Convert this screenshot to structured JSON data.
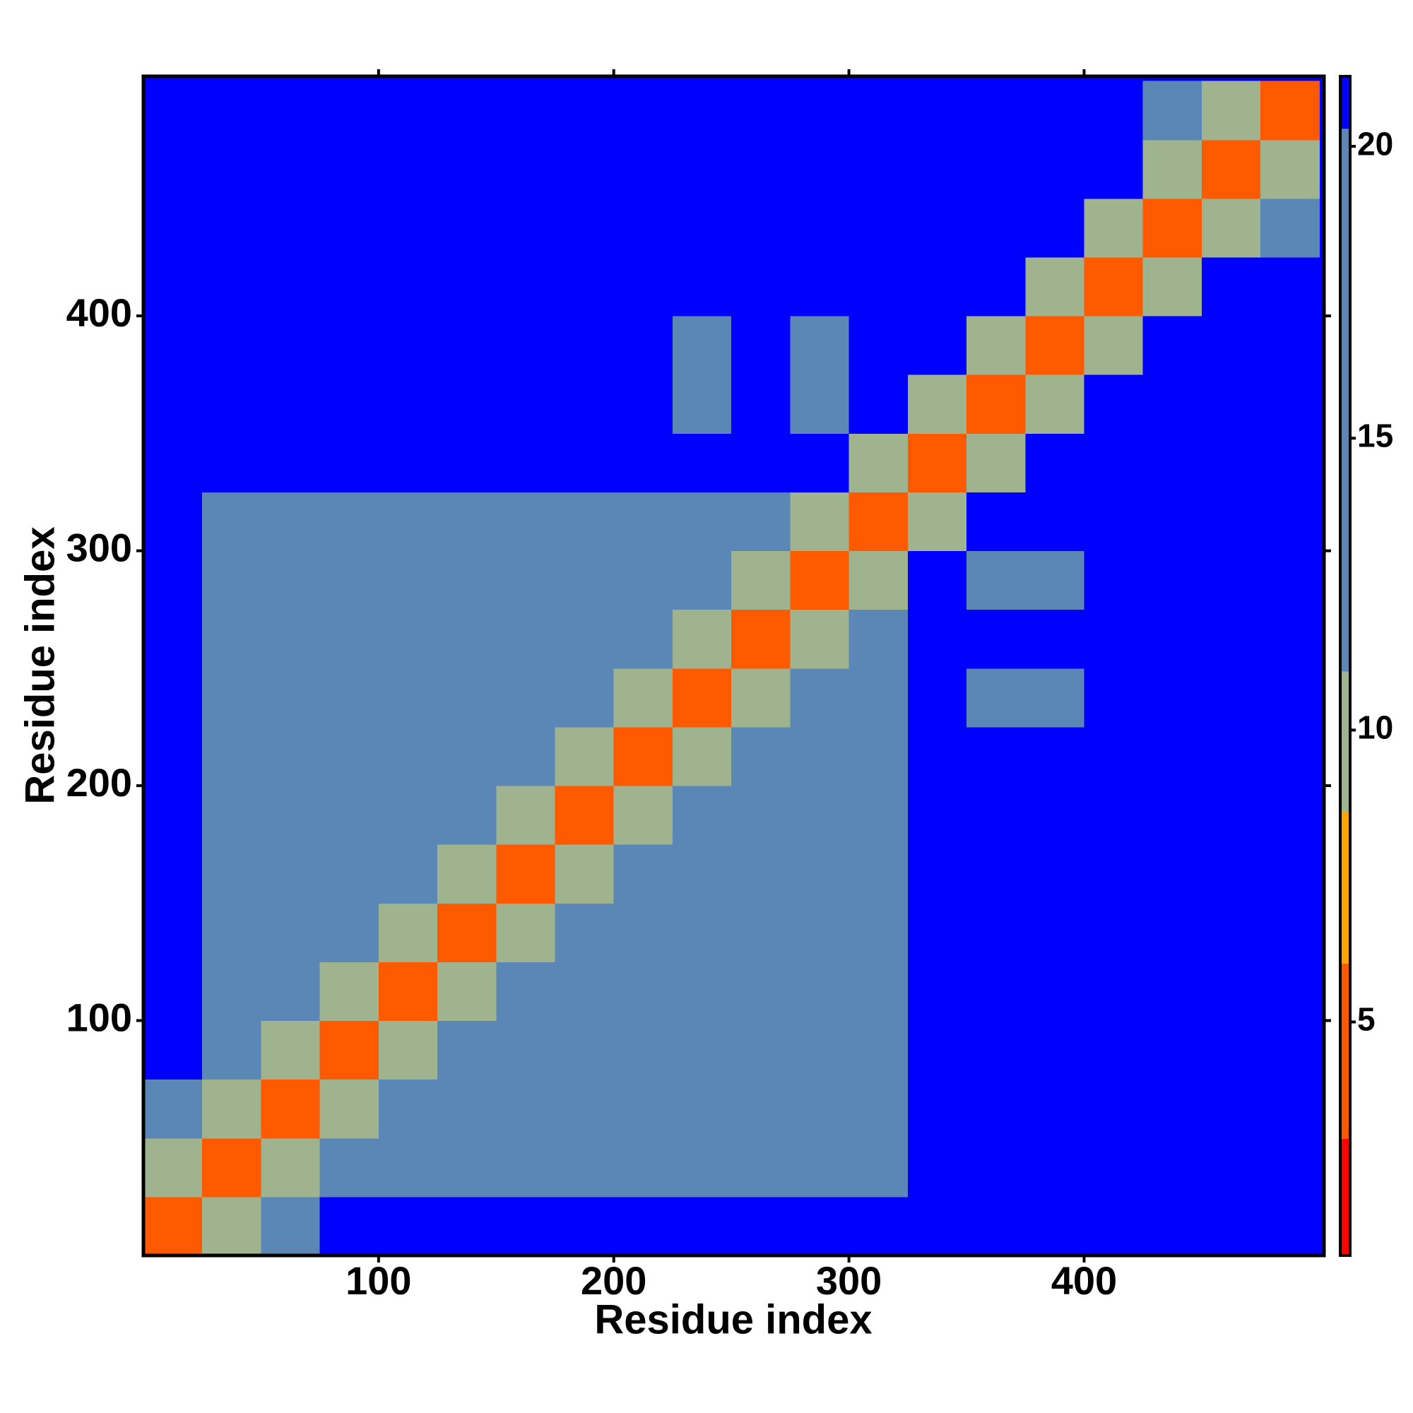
{
  "chart_data": {
    "type": "heatmap",
    "xlabel": "Residue index",
    "ylabel": "Residue index",
    "x_edges": [
      0,
      25,
      50,
      75,
      100,
      125,
      150,
      175,
      200,
      225,
      250,
      275,
      300,
      325,
      350,
      375,
      400,
      425,
      450,
      475,
      500
    ],
    "y_edges": [
      0,
      25,
      50,
      75,
      100,
      125,
      150,
      175,
      200,
      225,
      250,
      275,
      300,
      325,
      350,
      375,
      400,
      425,
      450,
      475,
      500
    ],
    "z": [
      [
        6,
        11,
        17,
        21,
        21,
        21,
        21,
        21,
        21,
        21,
        21,
        21,
        21,
        21,
        21,
        21,
        21,
        21,
        21,
        21
      ],
      [
        11,
        6,
        11,
        15,
        15,
        15,
        15,
        15,
        19,
        16,
        16,
        16,
        16,
        21,
        21,
        21,
        21,
        21,
        21,
        21
      ],
      [
        17,
        11,
        6,
        11,
        15,
        15,
        15,
        15,
        19,
        16,
        16,
        16,
        16,
        21,
        21,
        21,
        21,
        21,
        21,
        21
      ],
      [
        21,
        15,
        11,
        6,
        11,
        15,
        15,
        15,
        19,
        16,
        16,
        16,
        16,
        21,
        21,
        21,
        21,
        21,
        21,
        21
      ],
      [
        21,
        15,
        15,
        11,
        6,
        11,
        15,
        15,
        19,
        16,
        16,
        16,
        16,
        21,
        21,
        21,
        21,
        21,
        21,
        21
      ],
      [
        21,
        15,
        15,
        15,
        11,
        6,
        11,
        15,
        19,
        16,
        16,
        16,
        16,
        21,
        21,
        21,
        21,
        21,
        21,
        21
      ],
      [
        21,
        15,
        15,
        15,
        15,
        11,
        6,
        11,
        19,
        16,
        16,
        16,
        16,
        21,
        21,
        21,
        21,
        21,
        21,
        21
      ],
      [
        21,
        15,
        15,
        15,
        15,
        15,
        11,
        6,
        11,
        16,
        16,
        16,
        16,
        21,
        21,
        21,
        21,
        21,
        21,
        21
      ],
      [
        21,
        19,
        19,
        19,
        19,
        19,
        19,
        11,
        6,
        11,
        15,
        15,
        15,
        21,
        21,
        21,
        21,
        21,
        21,
        21
      ],
      [
        21,
        16,
        16,
        16,
        16,
        16,
        16,
        16,
        11,
        6,
        11,
        15,
        15,
        21,
        19,
        19,
        21,
        21,
        21,
        21
      ],
      [
        21,
        16,
        16,
        16,
        16,
        16,
        16,
        16,
        15,
        11,
        6,
        11,
        15,
        21,
        21,
        21,
        21,
        21,
        21,
        21
      ],
      [
        21,
        16,
        16,
        16,
        16,
        16,
        16,
        16,
        15,
        15,
        11,
        6,
        11,
        21,
        19,
        19,
        21,
        21,
        21,
        21
      ],
      [
        21,
        16,
        16,
        16,
        16,
        16,
        16,
        16,
        15,
        15,
        15,
        11,
        6,
        11,
        21,
        21,
        21,
        21,
        21,
        21
      ],
      [
        21,
        21,
        21,
        21,
        21,
        21,
        21,
        21,
        21,
        21,
        21,
        21,
        11,
        6,
        11,
        21,
        21,
        21,
        21,
        21
      ],
      [
        21,
        21,
        21,
        21,
        21,
        21,
        21,
        21,
        21,
        19,
        21,
        19,
        21,
        11,
        6,
        11,
        21,
        21,
        21,
        21
      ],
      [
        21,
        21,
        21,
        21,
        21,
        21,
        21,
        21,
        21,
        19,
        21,
        19,
        21,
        21,
        11,
        6,
        11,
        21,
        21,
        21
      ],
      [
        21,
        21,
        21,
        21,
        21,
        21,
        21,
        21,
        21,
        21,
        21,
        21,
        21,
        21,
        21,
        11,
        6,
        11,
        21,
        21
      ],
      [
        21,
        21,
        21,
        21,
        21,
        21,
        21,
        21,
        21,
        21,
        21,
        21,
        21,
        21,
        21,
        21,
        11,
        6,
        11,
        14
      ],
      [
        21,
        21,
        21,
        21,
        21,
        21,
        21,
        21,
        21,
        21,
        21,
        21,
        21,
        21,
        21,
        21,
        21,
        11,
        6,
        11
      ],
      [
        21,
        21,
        21,
        21,
        21,
        21,
        21,
        21,
        21,
        21,
        21,
        21,
        21,
        21,
        21,
        21,
        21,
        14,
        11,
        6
      ]
    ],
    "xlim": [
      0,
      502
    ],
    "ylim": [
      0,
      502
    ],
    "xticks": [
      100,
      200,
      300,
      400
    ],
    "yticks": [
      100,
      200,
      300,
      400
    ],
    "clim": [
      1,
      21.2
    ],
    "colorbar_ticks": [
      5,
      10,
      15,
      20
    ],
    "color_scale": [
      {
        "max": 3,
        "color": "#ff0000"
      },
      {
        "max": 6,
        "color": "#ff5a00"
      },
      {
        "max": 8.6,
        "color": "#ffa500"
      },
      {
        "max": 11,
        "color": "#9fb38f"
      },
      {
        "max": 20.3,
        "color": "#5b87b7"
      },
      {
        "max": 21.2,
        "color": "#0000ff"
      }
    ]
  }
}
